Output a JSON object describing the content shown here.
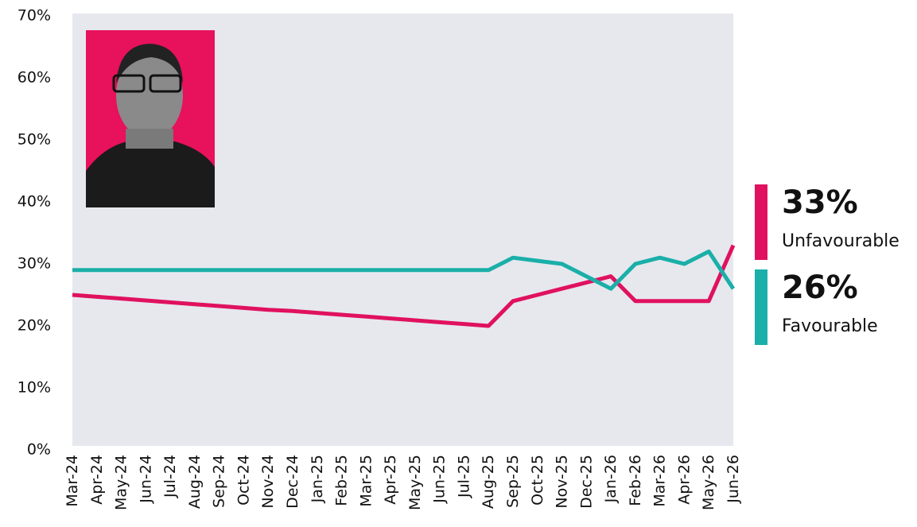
{
  "chart_data": {
    "type": "line",
    "categories": [
      "Mar-24",
      "Apr-24",
      "May-24",
      "Jun-24",
      "Jul-24",
      "Aug-24",
      "Sep-24",
      "Oct-24",
      "Nov-24",
      "Dec-24",
      "Jan-25",
      "Feb-25",
      "Mar-25",
      "Apr-25",
      "May-25",
      "Jun-25",
      "Jul-25",
      "Aug-25",
      "Sep-25",
      "Oct-25",
      "Nov-25",
      "Dec-25",
      "Jan-26",
      "Feb-26",
      "Mar-26",
      "Apr-26",
      "May-26",
      "Jun-26"
    ],
    "series": [
      {
        "name": "Unfavourable",
        "color": "#e0115f",
        "end_label": "33%",
        "values": [
          25,
          24.7,
          24.4,
          24.1,
          23.8,
          23.5,
          23.2,
          22.9,
          22.6,
          22.4,
          22.1,
          21.8,
          21.5,
          21.2,
          20.9,
          20.6,
          20.3,
          20,
          24,
          25,
          26,
          27,
          28,
          24,
          24,
          24,
          24,
          33
        ]
      },
      {
        "name": "Favourable",
        "color": "#1aafa8",
        "end_label": "26%",
        "values": [
          29,
          29,
          29,
          29,
          29,
          29,
          29,
          29,
          29,
          29,
          29,
          29,
          29,
          29,
          29,
          29,
          29,
          29,
          31,
          30.5,
          30,
          28,
          26,
          30,
          31,
          30,
          32,
          26
        ]
      }
    ],
    "ylim": [
      0,
      70
    ],
    "yticks": [
      {
        "value": 0,
        "label": "0%"
      },
      {
        "value": 10,
        "label": "10%"
      },
      {
        "value": 20,
        "label": "20%"
      },
      {
        "value": 30,
        "label": "30%"
      },
      {
        "value": 40,
        "label": "40%"
      },
      {
        "value": 50,
        "label": "50%"
      },
      {
        "value": 60,
        "label": "60%"
      },
      {
        "value": 70,
        "label": "70%"
      }
    ],
    "plot_background": "#e6e8ee"
  }
}
